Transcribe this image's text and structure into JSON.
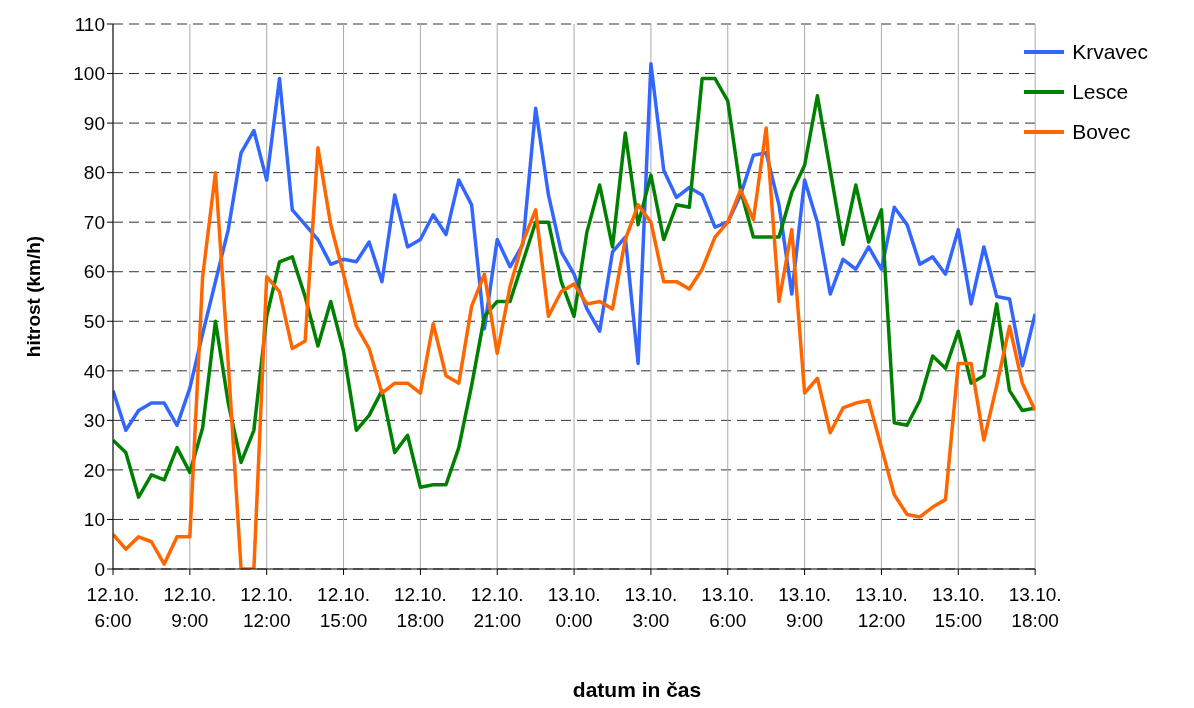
{
  "chart_data": {
    "type": "line",
    "xlabel": "datum in čas",
    "ylabel": "hitrost (km/h)",
    "categories": [
      "12.10. 6:00",
      null,
      null,
      null,
      null,
      null,
      "12.10. 9:00",
      null,
      null,
      null,
      null,
      null,
      "12.10. 12:00",
      null,
      null,
      null,
      null,
      null,
      "12.10. 15:00",
      null,
      null,
      null,
      null,
      null,
      "12.10. 18:00",
      null,
      null,
      null,
      null,
      null,
      "12.10. 21:00",
      null,
      null,
      null,
      null,
      null,
      "13.10. 0:00",
      null,
      null,
      null,
      null,
      null,
      "13.10. 3:00",
      null,
      null,
      null,
      null,
      null,
      "13.10. 6:00",
      null,
      null,
      null,
      null,
      null,
      "13.10. 9:00",
      null,
      null,
      null,
      null,
      null,
      "13.10. 12:00",
      null,
      null,
      null,
      null,
      null,
      "13.10. 15:00",
      null,
      null,
      null,
      null,
      null,
      "13.10. 18:00"
    ],
    "series": [
      {
        "name": "Krvavec",
        "color": "#3366ff",
        "values": [
          36,
          28,
          32,
          33.5,
          33.5,
          29,
          36.5,
          47.5,
          58,
          68.5,
          84,
          88.5,
          78.5,
          99,
          72.5,
          69.5,
          66.5,
          61.5,
          62.5,
          62,
          66,
          58,
          75.5,
          65,
          66.5,
          71.5,
          67.5,
          78.5,
          73.5,
          48.5,
          66.5,
          61,
          65.5,
          93,
          75.5,
          64,
          59.5,
          52.5,
          48,
          64,
          67,
          41.5,
          102,
          80.5,
          75,
          77,
          75.5,
          69,
          70,
          75.5,
          83.5,
          84,
          73.5,
          55.5,
          78.5,
          70,
          55.5,
          62.5,
          60.5,
          65,
          60.5,
          73,
          69.5,
          61.5,
          63,
          59.5,
          68.5,
          53.5,
          65,
          55,
          54.5,
          41,
          51.5
        ]
      },
      {
        "name": "Lesce",
        "color": "#008000",
        "values": [
          26,
          23.5,
          14.5,
          19,
          18,
          24.5,
          19.5,
          28.5,
          50,
          33.5,
          21.5,
          28,
          51,
          62,
          63,
          55,
          45,
          54,
          44,
          28,
          31,
          36,
          23.5,
          27,
          16.5,
          17,
          17,
          24.5,
          37,
          51,
          54,
          54,
          62,
          70,
          70,
          58,
          51,
          68,
          77.5,
          65,
          88,
          69.5,
          79.5,
          66.5,
          73.5,
          73,
          99,
          99,
          94.5,
          76.5,
          67,
          67,
          67,
          76,
          81.5,
          95.5,
          80.5,
          65.5,
          77.5,
          66,
          72.5,
          29.5,
          29,
          34,
          43,
          40.5,
          48,
          37.5,
          39,
          53.5,
          36,
          32,
          32.5
        ]
      },
      {
        "name": "Bovec",
        "color": "#ff6600",
        "values": [
          7,
          4,
          6.5,
          5.5,
          1,
          6.5,
          6.5,
          59,
          80,
          41.5,
          0,
          0,
          59,
          56,
          44.5,
          46,
          85,
          69.5,
          59.5,
          49,
          44.5,
          35.5,
          37.5,
          37.5,
          35.5,
          49.5,
          39,
          37.5,
          53,
          59.5,
          43.5,
          57,
          66,
          72.5,
          51,
          56,
          57.5,
          53.5,
          54,
          52.5,
          66.5,
          73.5,
          70,
          58,
          58,
          56.5,
          60.5,
          67,
          70,
          76.5,
          70.5,
          89,
          54,
          68.5,
          35.5,
          38.5,
          27.5,
          32.5,
          33.5,
          34,
          24.5,
          15,
          11,
          10.5,
          12.5,
          14,
          41.5,
          41.5,
          26,
          37,
          49,
          37.5,
          32
        ]
      }
    ],
    "ylim": [
      0,
      110
    ],
    "yticks": [
      0,
      10,
      20,
      30,
      40,
      50,
      60,
      70,
      80,
      90,
      100,
      110
    ],
    "grid": true,
    "legend": "top right",
    "marker": "none",
    "line_style": "solid"
  }
}
